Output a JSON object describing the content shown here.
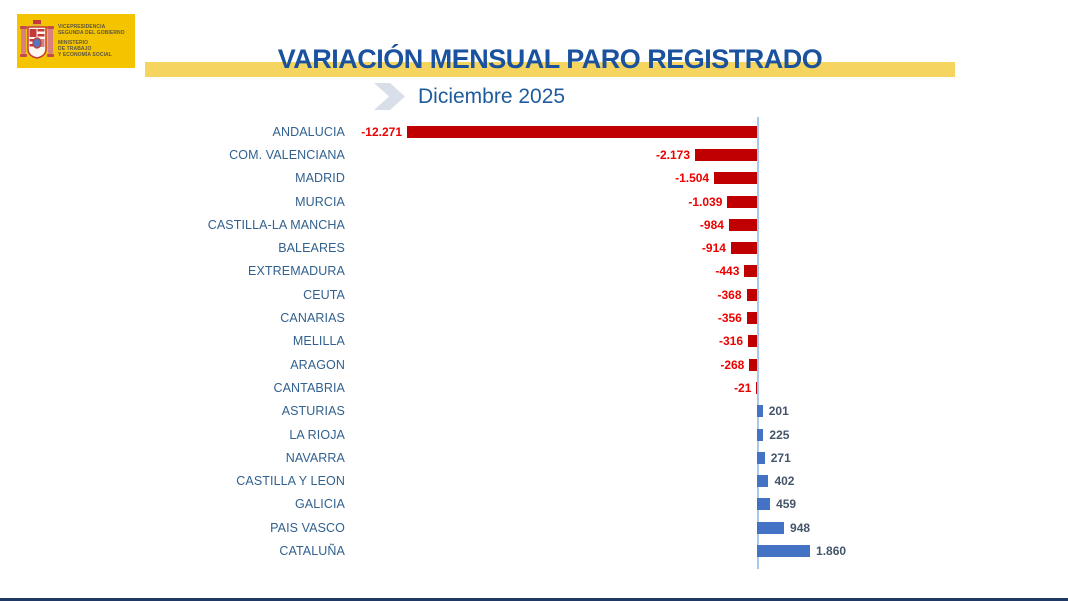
{
  "logo": {
    "background": "#F5C400",
    "lines": [
      "VICEPRESIDENCIA",
      "SEGUNDA DEL GOBIERNO",
      "MINISTERIO",
      "DE TRABAJO",
      "Y ECONOMÍA SOCIAL"
    ]
  },
  "header": {
    "title": "VARIACIÓN MENSUAL PARO REGISTRADO",
    "subtitle": "Diciembre 2025",
    "title_color": "#1A529E",
    "stripe_color": "#F5D55F"
  },
  "chart_data": {
    "type": "bar",
    "orientation": "horizontal",
    "title": "VARIACIÓN MENSUAL PARO REGISTRADO",
    "subtitle": "Diciembre 2025",
    "categories": [
      "ANDALUCIA",
      "COM. VALENCIANA",
      "MADRID",
      "MURCIA",
      "CASTILLA-LA MANCHA",
      "BALEARES",
      "EXTREMADURA",
      "CEUTA",
      "CANARIAS",
      "MELILLA",
      "ARAGON",
      "CANTABRIA",
      "ASTURIAS",
      "LA RIOJA",
      "NAVARRA",
      "CASTILLA Y LEON",
      "GALICIA",
      "PAIS VASCO",
      "CATALUÑA"
    ],
    "values": [
      -12271,
      -2173,
      -1504,
      -1039,
      -984,
      -914,
      -443,
      -368,
      -356,
      -316,
      -268,
      -21,
      201,
      225,
      271,
      402,
      459,
      948,
      1860
    ],
    "value_labels": [
      "-12.271",
      "-2.173",
      "-1.504",
      "-1.039",
      "-984",
      "-914",
      "-443",
      "-368",
      "-356",
      "-316",
      "-268",
      "-21",
      "201",
      "225",
      "271",
      "402",
      "459",
      "948",
      "1.860"
    ],
    "xlim": [
      -12500,
      2000
    ],
    "grid": false,
    "legend": false,
    "negative_color": "#C00000",
    "positive_color": "#4472C4",
    "negative_label_color": "#EC0000",
    "positive_label_color": "#44546A",
    "category_label_color": "#31618F",
    "axis_line_color": "#A9C7E9"
  }
}
